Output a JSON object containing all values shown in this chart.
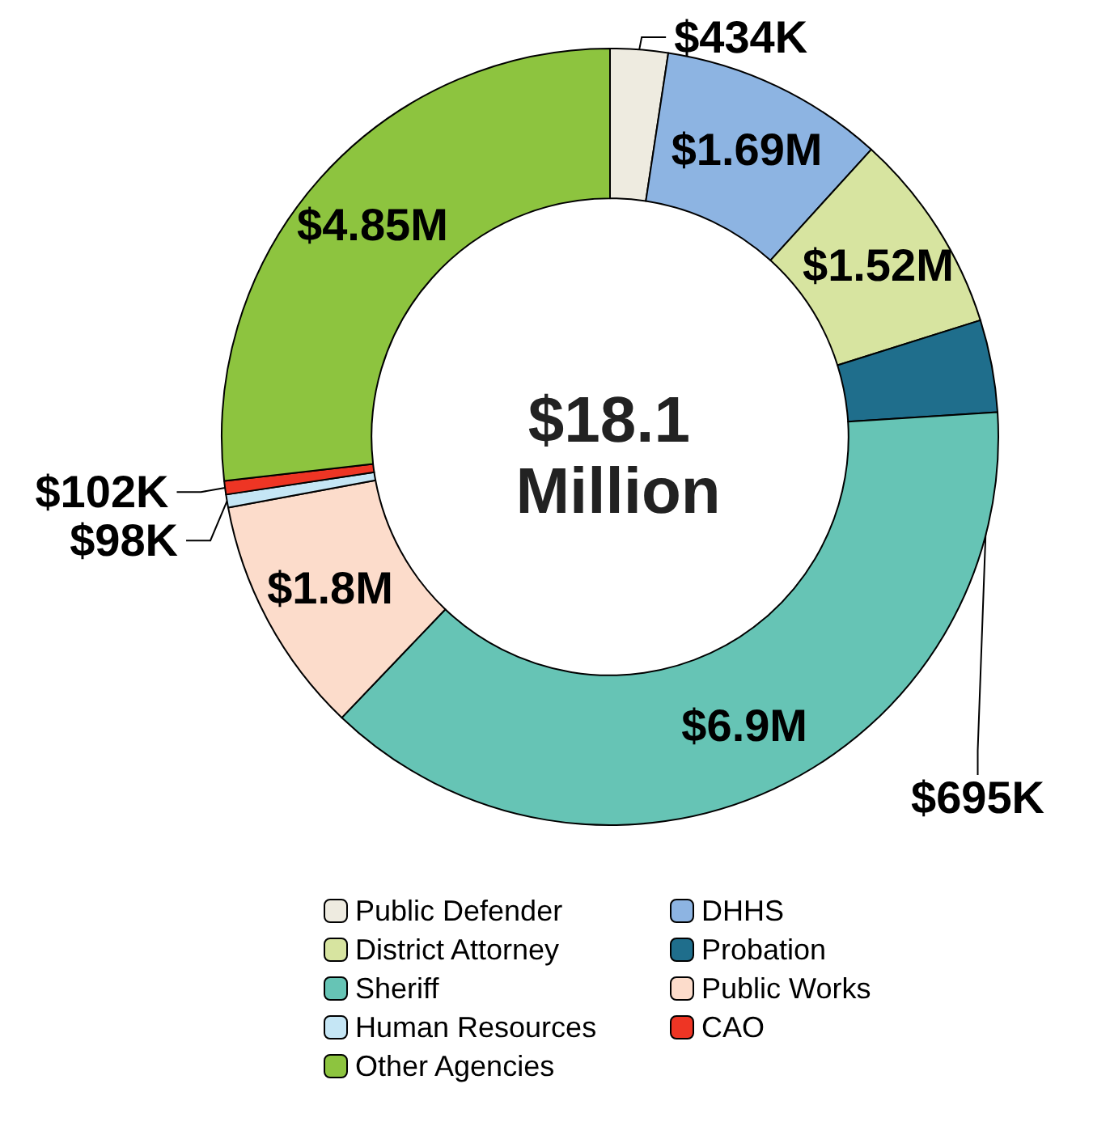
{
  "chart_data": {
    "type": "donut",
    "title": "$18.1 Million",
    "categories": [
      "Public Defender",
      "DHHS",
      "District Attorney",
      "Probation",
      "Sheriff",
      "Public Works",
      "Human Resources",
      "CAO",
      "Other Agencies"
    ],
    "values": [
      434000,
      1690000,
      1520000,
      695000,
      6900000,
      1800000,
      98000,
      102000,
      4850000
    ],
    "value_labels": [
      "$434K",
      "$1.69M",
      "$1.52M",
      "$695K",
      "$6.9M",
      "$1.8M",
      "$98K",
      "$102K",
      "$4.85M"
    ],
    "colors": [
      "#eeebe0",
      "#8db4e2",
      "#d7e4a0",
      "#1f6e8c",
      "#66c4b5",
      "#fcdccb",
      "#c5e6f5",
      "#ee3524",
      "#8dc43f"
    ],
    "legend": "bottom"
  }
}
